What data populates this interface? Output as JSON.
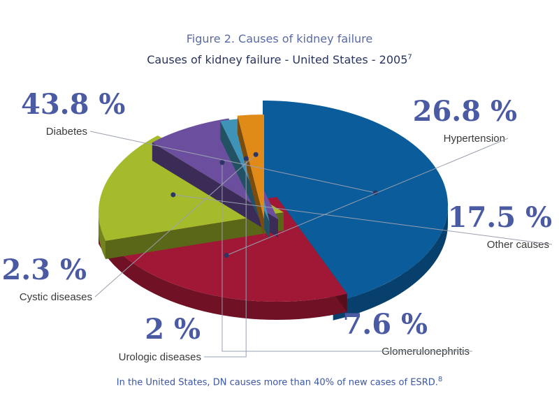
{
  "header": {
    "figure_title": "Figure 2. Causes of kidney failure",
    "subtitle": "Causes of kidney failure - United States - 2005",
    "subtitle_ref": "7"
  },
  "footer": {
    "note": "In the United States, DN causes more than 40% of new cases of ESRD.",
    "note_ref": "8"
  },
  "chart_data": {
    "type": "pie",
    "title": "Causes of kidney failure - United States - 2005",
    "slices": [
      {
        "label": "Diabetes",
        "value": 43.8,
        "value_label": "43.8 %",
        "color": "#0a5c9a"
      },
      {
        "label": "Hypertension",
        "value": 26.8,
        "value_label": "26.8 %",
        "color": "#a01835"
      },
      {
        "label": "Other causes",
        "value": 17.5,
        "value_label": "17.5 %",
        "color": "#a5bb2c"
      },
      {
        "label": "Glomerulonephritis",
        "value": 7.6,
        "value_label": "7.6 %",
        "color": "#6b4f9e"
      },
      {
        "label": "Urologic diseases",
        "value": 2,
        "value_label": "2 %",
        "color": "#3f93b6"
      },
      {
        "label": "Cystic diseases",
        "value": 2.3,
        "value_label": "2.3 %",
        "color": "#e08a17"
      }
    ]
  }
}
